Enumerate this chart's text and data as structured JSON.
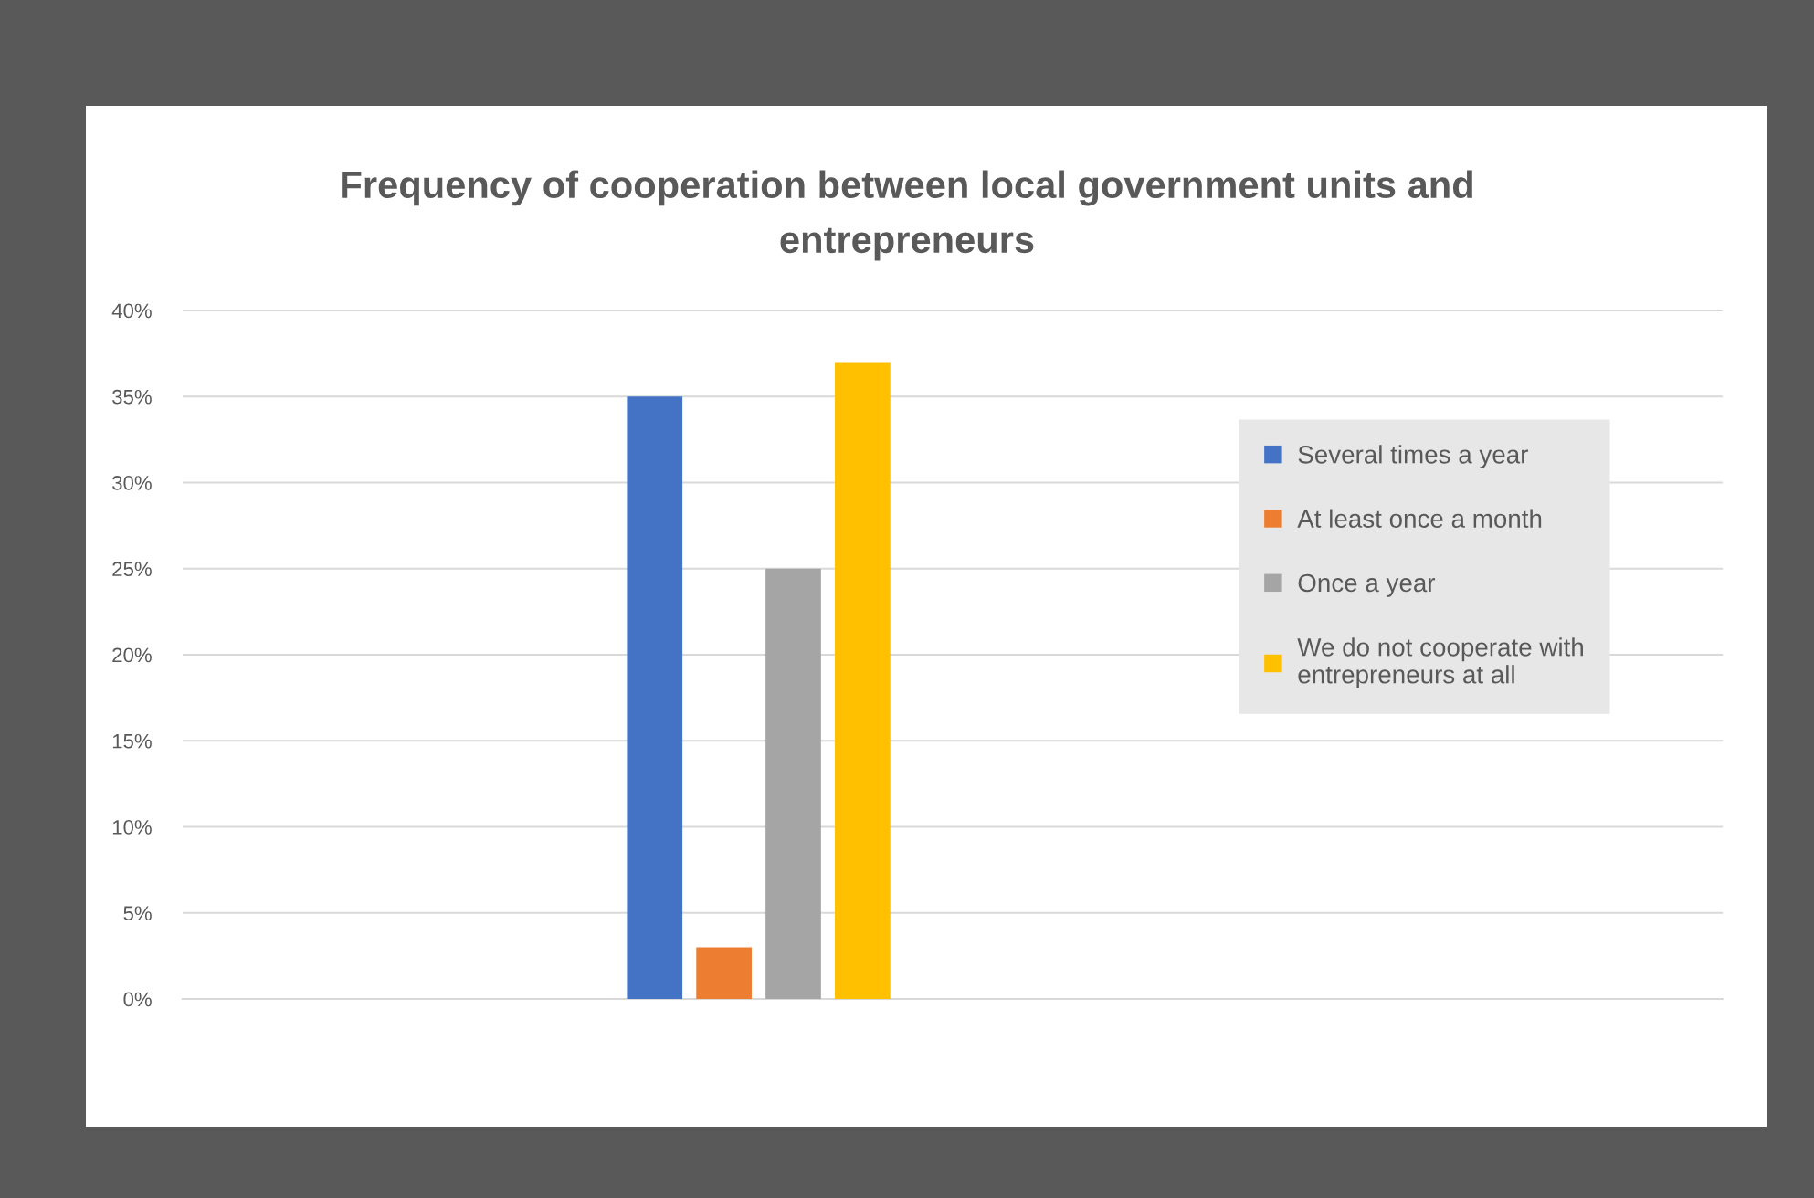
{
  "chart_data": {
    "type": "bar",
    "title": "Frequency of cooperation between local government units and\nentrepreneurs",
    "categories": [
      null
    ],
    "series": [
      {
        "name": "Several times a year",
        "color": "#4472c4",
        "values": [
          35
        ]
      },
      {
        "name": "At least once a month",
        "color": "#ed7d31",
        "values": [
          3
        ]
      },
      {
        "name": "Once a year",
        "color": "#a5a5a5",
        "values": [
          25
        ]
      },
      {
        "name": "We do not cooperate with\nentrepreneurs at all",
        "color": "#ffc000",
        "values": [
          37
        ]
      }
    ],
    "ylim": [
      0,
      40
    ],
    "yticks": [
      {
        "value": 0,
        "label": "0%"
      },
      {
        "value": 5,
        "label": "5%"
      },
      {
        "value": 10,
        "label": "10%"
      },
      {
        "value": 15,
        "label": "15%"
      },
      {
        "value": 20,
        "label": "20%"
      },
      {
        "value": 25,
        "label": "25%"
      },
      {
        "value": 30,
        "label": "30%"
      },
      {
        "value": 35,
        "label": "35%"
      },
      {
        "value": 40,
        "label": "40%"
      }
    ],
    "grid": "y",
    "legend": "top right"
  }
}
